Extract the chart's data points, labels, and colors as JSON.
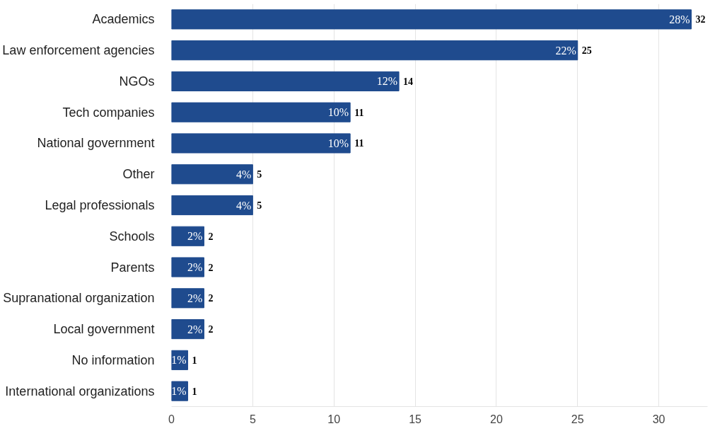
{
  "chart_data": {
    "type": "bar",
    "orientation": "horizontal",
    "categories": [
      "Academics",
      "Law enforcement agencies",
      "NGOs",
      "Tech companies",
      "National government",
      "Other",
      "Legal professionals",
      "Schools",
      "Parents",
      "Supranational organization",
      "Local government",
      "No information",
      "International organizations"
    ],
    "values": [
      32,
      25,
      14,
      11,
      11,
      5,
      5,
      2,
      2,
      2,
      2,
      1,
      1
    ],
    "color": "#1f4b8e",
    "value_labels": [
      "32",
      "25",
      "14",
      "11",
      "11",
      "5",
      "5",
      "2",
      "2",
      "2",
      "2",
      "1",
      "1"
    ],
    "annotations": [
      {
        "text": "28%",
        "x": 32,
        "y": "Academics"
      },
      {
        "text": "22%",
        "x": 25,
        "y": "Law enforcement agencies"
      },
      {
        "text": "12%",
        "x": 14,
        "y": "NGOs"
      },
      {
        "text": "10%",
        "x": 11,
        "y": "Tech companies"
      },
      {
        "text": "10%",
        "x": 11,
        "y": "National government"
      },
      {
        "text": "4%",
        "x": 5,
        "y": "Other"
      },
      {
        "text": "4%",
        "x": 5,
        "y": "Legal professionals"
      },
      {
        "text": "2%",
        "x": 2,
        "y": "Schools"
      },
      {
        "text": "2%",
        "x": 2,
        "y": "Parents"
      },
      {
        "text": "2%",
        "x": 2,
        "y": "Supranational organization"
      },
      {
        "text": "2%",
        "x": 2,
        "y": "Local government"
      },
      {
        "text": "1%",
        "x": 1,
        "y": "No information"
      },
      {
        "text": "1%",
        "x": 1,
        "y": "International organizations"
      }
    ],
    "xlim": [
      0,
      33
    ],
    "xticks": [
      0,
      5,
      10,
      15,
      20,
      25,
      30
    ],
    "grid": "x"
  }
}
